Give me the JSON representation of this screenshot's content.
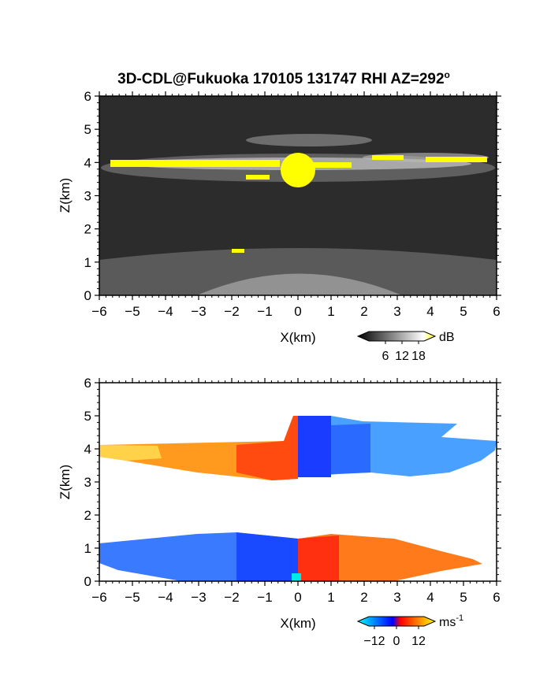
{
  "title": "3D-CDL@Fukuoka 170105 131747 RHI AZ=292",
  "title_sup": "o",
  "chart_data": [
    {
      "type": "heatmap",
      "panel": "reflectivity",
      "xlabel": "X(km)",
      "ylabel": "Z(km)",
      "xlim": [
        -6,
        6
      ],
      "ylim": [
        0,
        6
      ],
      "xticks": [
        "-6",
        "-5",
        "-4",
        "-3",
        "-2",
        "-1",
        "0",
        "1",
        "2",
        "3",
        "4",
        "5",
        "6"
      ],
      "yticks": [
        "0",
        "1",
        "2",
        "3",
        "4",
        "5",
        "6"
      ],
      "colorbar": {
        "unit": "dB",
        "ticks": [
          "6",
          "12",
          "18"
        ],
        "tick_values": [
          6,
          12,
          18
        ],
        "range": [
          0,
          20
        ],
        "colors": [
          "#000000",
          "#ffffff",
          "#ffff00"
        ]
      },
      "features": [
        {
          "kind": "layer",
          "x": [
            -6,
            6
          ],
          "z": [
            3.6,
            4.25
          ],
          "level": "high"
        },
        {
          "kind": "layer",
          "x": [
            -6,
            6
          ],
          "z": [
            0,
            1.3
          ],
          "level": "medium"
        },
        {
          "kind": "core",
          "x": [
            -0.6,
            0.6
          ],
          "z": [
            3.2,
            4.3
          ],
          "level": "max"
        }
      ]
    },
    {
      "type": "heatmap",
      "panel": "doppler_velocity",
      "xlabel": "X(km)",
      "ylabel": "Z(km)",
      "xlim": [
        -6,
        6
      ],
      "ylim": [
        0,
        6
      ],
      "xticks": [
        "-6",
        "-5",
        "-4",
        "-3",
        "-2",
        "-1",
        "0",
        "1",
        "2",
        "3",
        "4",
        "5",
        "6"
      ],
      "yticks": [
        "0",
        "1",
        "2",
        "3",
        "4",
        "5",
        "6"
      ],
      "colorbar": {
        "unit": "ms",
        "unit_sup": "-1",
        "ticks": [
          "-12",
          "0",
          "12"
        ],
        "tick_values": [
          -12,
          0,
          12
        ],
        "range": [
          -15,
          15
        ],
        "colors": [
          "#00ffff",
          "#0000ff",
          "#ff0000",
          "#ffff00"
        ]
      },
      "features": [
        {
          "kind": "layer",
          "x": [
            -6,
            0
          ],
          "z": [
            3.1,
            4.3
          ],
          "velocity": 10
        },
        {
          "kind": "layer",
          "x": [
            0,
            6
          ],
          "z": [
            3.2,
            5.0
          ],
          "velocity": -10
        },
        {
          "kind": "layer",
          "x": [
            -6,
            0
          ],
          "z": [
            0,
            1.4
          ],
          "velocity": -10
        },
        {
          "kind": "layer",
          "x": [
            0,
            5
          ],
          "z": [
            0,
            1.4
          ],
          "velocity": 8
        }
      ]
    }
  ]
}
